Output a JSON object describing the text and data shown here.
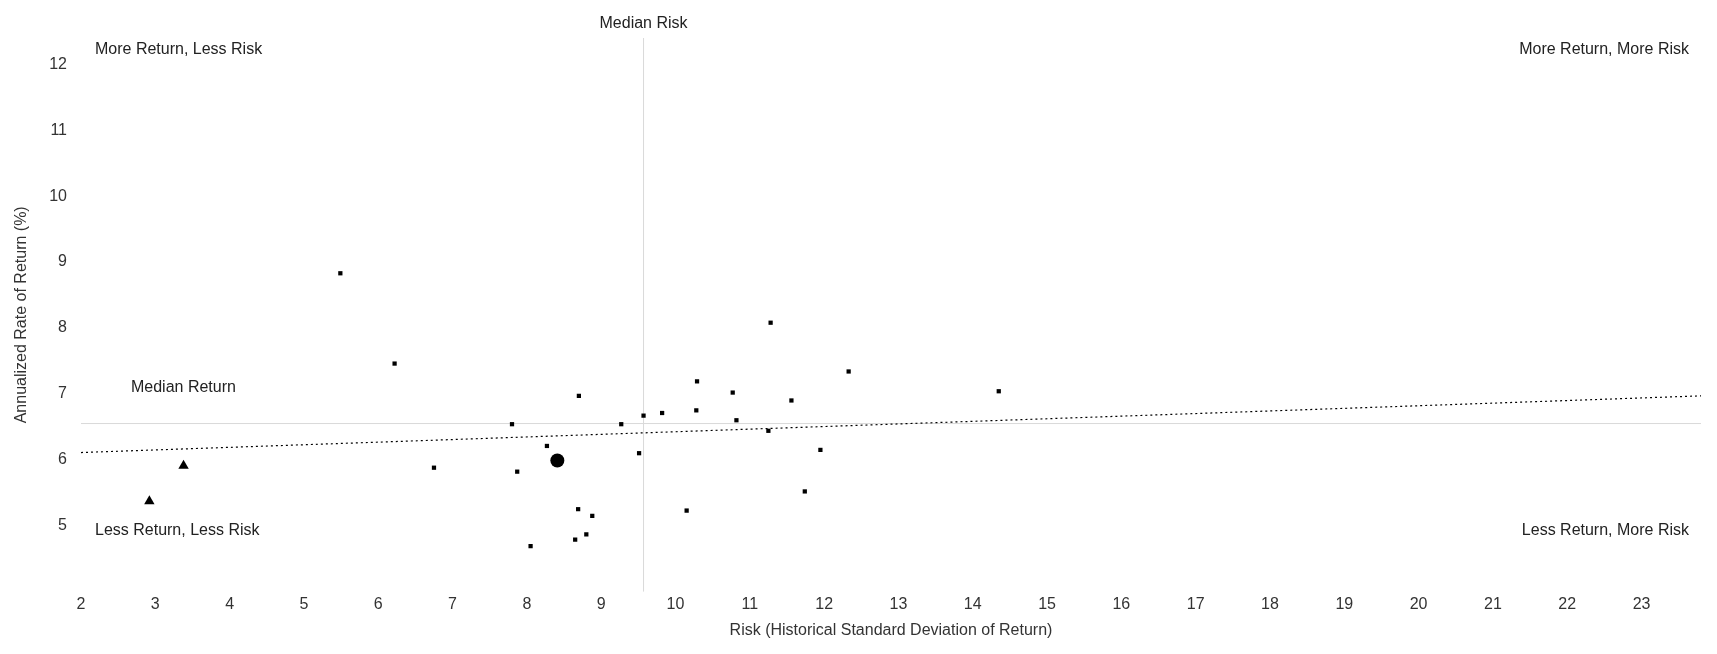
{
  "chart_data": {
    "type": "scatter",
    "xlabel": "Risk (Historical Standard Deviation of Return)",
    "ylabel": "Annualized Rate of Return (%)",
    "xlim": [
      2,
      23.8
    ],
    "ylim": [
      4.0,
      12.4
    ],
    "xticks": [
      2,
      3,
      4,
      5,
      6,
      7,
      8,
      9,
      10,
      11,
      12,
      13,
      14,
      15,
      16,
      17,
      18,
      19,
      20,
      21,
      22,
      23
    ],
    "yticks": [
      5,
      6,
      7,
      8,
      9,
      10,
      11,
      12
    ],
    "grid": false,
    "legend": false,
    "series": [
      {
        "type": "scatter",
        "marker": "square",
        "color": "#000000",
        "x": [
          5.49,
          6.22,
          6.75,
          7.8,
          7.87,
          8.05,
          8.27,
          8.65,
          8.69,
          8.7,
          8.8,
          8.88,
          9.27,
          9.51,
          9.57,
          9.82,
          10.15,
          10.28,
          10.29,
          10.77,
          10.82,
          11.25,
          11.28,
          11.56,
          11.74,
          11.95,
          12.33,
          14.35
        ],
        "values": [
          8.83,
          7.46,
          5.88,
          6.54,
          5.82,
          4.69,
          6.21,
          4.79,
          5.25,
          6.97,
          4.87,
          5.15,
          6.54,
          6.1,
          6.67,
          6.71,
          5.23,
          6.75,
          7.19,
          7.02,
          6.6,
          6.44,
          8.08,
          6.9,
          5.52,
          6.15,
          7.34,
          7.04
        ]
      },
      {
        "type": "scatter",
        "marker": "triangle",
        "color": "#000000",
        "x": [
          2.92,
          3.38
        ],
        "values": [
          5.37,
          5.91
        ]
      },
      {
        "type": "scatter",
        "marker": "circle",
        "color": "#000000",
        "x": [
          8.41
        ],
        "values": [
          5.99
        ]
      },
      {
        "type": "line",
        "line_style": "dotted",
        "color": "#000000",
        "x": [
          2,
          23.8
        ],
        "values": [
          6.11,
          6.97
        ]
      }
    ],
    "ref_lines": [
      {
        "axis": "y",
        "value": 6.55,
        "label": "Median Return",
        "color": "#d9d9d9"
      },
      {
        "axis": "x",
        "value": 9.57,
        "label": "Median Risk",
        "color": "#d9d9d9"
      }
    ],
    "annotations": [
      "More Return, Less Risk",
      "More Return, More Risk",
      "Less Return, Less Risk",
      "Less Return, More Risk"
    ]
  }
}
